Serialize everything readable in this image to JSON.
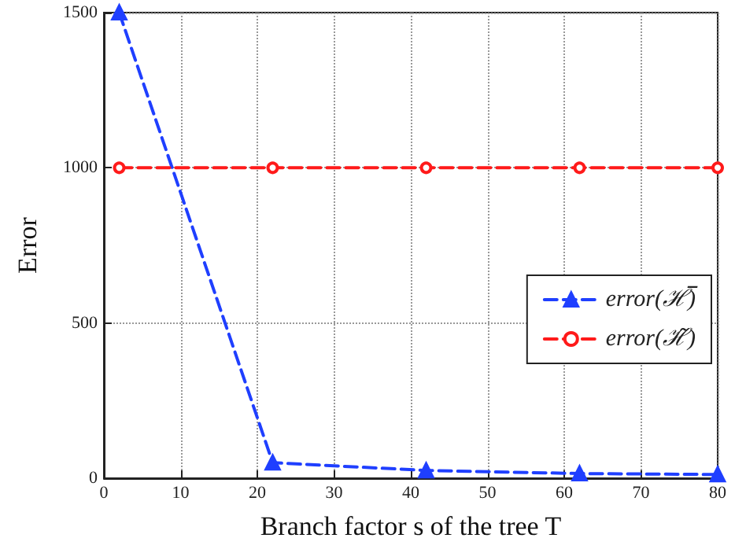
{
  "chart_data": {
    "type": "line",
    "xlabel": "Branch factor s of the tree T",
    "ylabel": "Error",
    "xlim": [
      0,
      80
    ],
    "xticks": [
      0,
      10,
      20,
      30,
      40,
      50,
      60,
      70,
      80
    ],
    "ylim": [
      0,
      1500
    ],
    "yticks": [
      0,
      500,
      1000,
      1500
    ],
    "grid": true,
    "legend": "right",
    "line_style": "dashed",
    "series": [
      {
        "name": "error(ℋ̅)",
        "color": "#1f3fff",
        "marker": "triangle",
        "x": [
          2,
          22,
          42,
          62,
          80
        ],
        "values": [
          1500,
          50,
          25,
          15,
          12
        ]
      },
      {
        "name": "error(ℋ̃)",
        "color": "#ff1a1a",
        "marker": "circle",
        "x": [
          2,
          22,
          42,
          62,
          80
        ],
        "values": [
          1000,
          1000,
          1000,
          1000,
          1000
        ]
      }
    ]
  }
}
